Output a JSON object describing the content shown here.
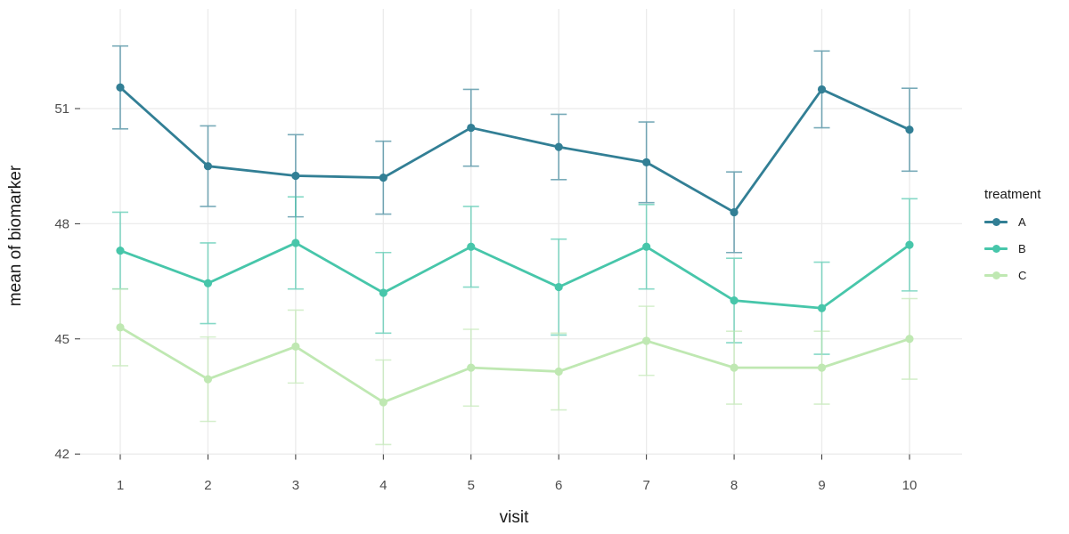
{
  "chart_data": {
    "type": "line",
    "title": "",
    "xlabel": "visit",
    "ylabel": "mean of biomarker",
    "legend_title": "treatment",
    "legend_position": "right",
    "x": [
      1,
      2,
      3,
      4,
      5,
      6,
      7,
      8,
      9,
      10
    ],
    "x_tick_labels": [
      "1",
      "2",
      "3",
      "4",
      "5",
      "6",
      "7",
      "8",
      "9",
      "10"
    ],
    "y_ticks": [
      42,
      45,
      48,
      51
    ],
    "ylim": [
      41.7,
      53.6
    ],
    "grid": true,
    "error_bars": true,
    "series": [
      {
        "name": "A",
        "color": "#327f95",
        "values": [
          51.55,
          49.5,
          49.25,
          49.2,
          50.5,
          50.0,
          49.6,
          48.3,
          51.5,
          50.45
        ],
        "error": [
          1.08,
          1.05,
          1.07,
          0.95,
          1.0,
          0.85,
          1.05,
          1.05,
          1.0,
          1.08
        ]
      },
      {
        "name": "B",
        "color": "#47c6aa",
        "values": [
          47.3,
          46.45,
          47.5,
          46.2,
          47.4,
          46.35,
          47.4,
          46.0,
          45.8,
          47.45
        ],
        "error": [
          1.0,
          1.05,
          1.2,
          1.05,
          1.05,
          1.25,
          1.1,
          1.1,
          1.2,
          1.2
        ]
      },
      {
        "name": "C",
        "color": "#bfe8b2",
        "values": [
          45.3,
          43.95,
          44.8,
          43.35,
          44.25,
          44.15,
          44.95,
          44.25,
          44.25,
          45.0
        ],
        "error": [
          1.0,
          1.1,
          0.95,
          1.1,
          1.0,
          1.0,
          0.9,
          0.95,
          0.95,
          1.05
        ]
      }
    ],
    "colors": {
      "background": "#ffffff",
      "gridline": "#ebebeb",
      "tick_mark": "#333333",
      "axis_text": "#4d4d4d",
      "axis_title": "#1a1a1a"
    }
  }
}
